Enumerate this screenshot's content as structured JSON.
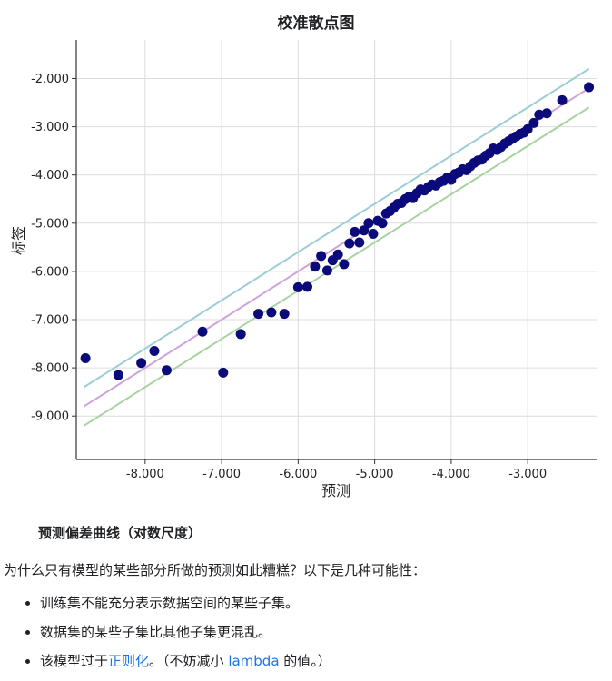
{
  "chart_data": {
    "type": "scatter",
    "title": "校准散点图",
    "xlabel": "预测",
    "ylabel": "标签",
    "xlim": [
      -8.9,
      -2.1
    ],
    "ylim": [
      -9.9,
      -1.2
    ],
    "xticks": [
      -8.0,
      -7.0,
      -6.0,
      -5.0,
      -4.0,
      -3.0
    ],
    "xtick_labels": [
      "-8.000",
      "-7.000",
      "-6.000",
      "-5.000",
      "-4.000",
      "-3.000"
    ],
    "yticks": [
      -2.0,
      -3.0,
      -4.0,
      -5.0,
      -6.0,
      -7.0,
      -8.0,
      -9.0
    ],
    "ytick_labels": [
      "-2.000",
      "-3.000",
      "-4.000",
      "-5.000",
      "-6.000",
      "-7.000",
      "-8.000",
      "-9.000"
    ],
    "grid": true,
    "reference_lines": [
      {
        "color": "#9ccdd6",
        "x": [
          -8.8,
          -2.2
        ],
        "y": [
          -8.4,
          -1.8
        ]
      },
      {
        "color": "#cfa3d9",
        "x": [
          -8.8,
          -2.2
        ],
        "y": [
          -8.8,
          -2.2
        ]
      },
      {
        "color": "#a7d3a1",
        "x": [
          -8.8,
          -2.2
        ],
        "y": [
          -9.2,
          -2.6
        ]
      }
    ],
    "point_color": "#0a0a7a",
    "points": [
      {
        "x": -8.78,
        "y": -7.8
      },
      {
        "x": -8.35,
        "y": -8.15
      },
      {
        "x": -8.05,
        "y": -7.9
      },
      {
        "x": -7.88,
        "y": -7.65
      },
      {
        "x": -7.72,
        "y": -8.05
      },
      {
        "x": -7.25,
        "y": -7.25
      },
      {
        "x": -6.98,
        "y": -8.1
      },
      {
        "x": -6.75,
        "y": -7.3
      },
      {
        "x": -6.52,
        "y": -6.88
      },
      {
        "x": -6.35,
        "y": -6.85
      },
      {
        "x": -6.18,
        "y": -6.88
      },
      {
        "x": -6.0,
        "y": -6.33
      },
      {
        "x": -5.88,
        "y": -6.32
      },
      {
        "x": -5.78,
        "y": -5.9
      },
      {
        "x": -5.7,
        "y": -5.68
      },
      {
        "x": -5.62,
        "y": -5.98
      },
      {
        "x": -5.55,
        "y": -5.77
      },
      {
        "x": -5.48,
        "y": -5.65
      },
      {
        "x": -5.4,
        "y": -5.85
      },
      {
        "x": -5.33,
        "y": -5.42
      },
      {
        "x": -5.26,
        "y": -5.18
      },
      {
        "x": -5.2,
        "y": -5.4
      },
      {
        "x": -5.14,
        "y": -5.15
      },
      {
        "x": -5.08,
        "y": -5.0
      },
      {
        "x": -5.02,
        "y": -5.22
      },
      {
        "x": -4.96,
        "y": -4.95
      },
      {
        "x": -4.9,
        "y": -5.0
      },
      {
        "x": -4.85,
        "y": -4.8
      },
      {
        "x": -4.8,
        "y": -4.75
      },
      {
        "x": -4.75,
        "y": -4.68
      },
      {
        "x": -4.7,
        "y": -4.6
      },
      {
        "x": -4.65,
        "y": -4.58
      },
      {
        "x": -4.6,
        "y": -4.5
      },
      {
        "x": -4.55,
        "y": -4.45
      },
      {
        "x": -4.5,
        "y": -4.48
      },
      {
        "x": -4.45,
        "y": -4.38
      },
      {
        "x": -4.4,
        "y": -4.3
      },
      {
        "x": -4.35,
        "y": -4.32
      },
      {
        "x": -4.3,
        "y": -4.25
      },
      {
        "x": -4.25,
        "y": -4.2
      },
      {
        "x": -4.2,
        "y": -4.22
      },
      {
        "x": -4.15,
        "y": -4.15
      },
      {
        "x": -4.1,
        "y": -4.12
      },
      {
        "x": -4.05,
        "y": -4.05
      },
      {
        "x": -4.0,
        "y": -4.1
      },
      {
        "x": -3.95,
        "y": -3.98
      },
      {
        "x": -3.9,
        "y": -3.95
      },
      {
        "x": -3.85,
        "y": -3.88
      },
      {
        "x": -3.8,
        "y": -3.9
      },
      {
        "x": -3.75,
        "y": -3.82
      },
      {
        "x": -3.7,
        "y": -3.75
      },
      {
        "x": -3.65,
        "y": -3.7
      },
      {
        "x": -3.6,
        "y": -3.68
      },
      {
        "x": -3.55,
        "y": -3.6
      },
      {
        "x": -3.5,
        "y": -3.55
      },
      {
        "x": -3.45,
        "y": -3.45
      },
      {
        "x": -3.4,
        "y": -3.48
      },
      {
        "x": -3.35,
        "y": -3.42
      },
      {
        "x": -3.3,
        "y": -3.35
      },
      {
        "x": -3.25,
        "y": -3.3
      },
      {
        "x": -3.2,
        "y": -3.25
      },
      {
        "x": -3.15,
        "y": -3.2
      },
      {
        "x": -3.1,
        "y": -3.15
      },
      {
        "x": -3.05,
        "y": -3.12
      },
      {
        "x": -3.0,
        "y": -3.05
      },
      {
        "x": -2.92,
        "y": -2.92
      },
      {
        "x": -2.85,
        "y": -2.75
      },
      {
        "x": -2.75,
        "y": -2.72
      },
      {
        "x": -2.55,
        "y": -2.45
      },
      {
        "x": -2.2,
        "y": -2.18
      }
    ]
  },
  "caption": "预测偏差曲线（对数尺度）",
  "paragraph": "为什么只有模型的某些部分所做的预测如此糟糕？以下是几种可能性：",
  "list": {
    "item1": "训练集不能充分表示数据空间的某些子集。",
    "item2": "数据集的某些子集比其他子集更混乱。",
    "item3_pre": "该模型过于",
    "item3_link": "正则化",
    "item3_mid": "。（不妨减小 ",
    "item3_link2": "lambda",
    "item3_post": " 的值。）",
    "link_color": "#1a73e8"
  }
}
